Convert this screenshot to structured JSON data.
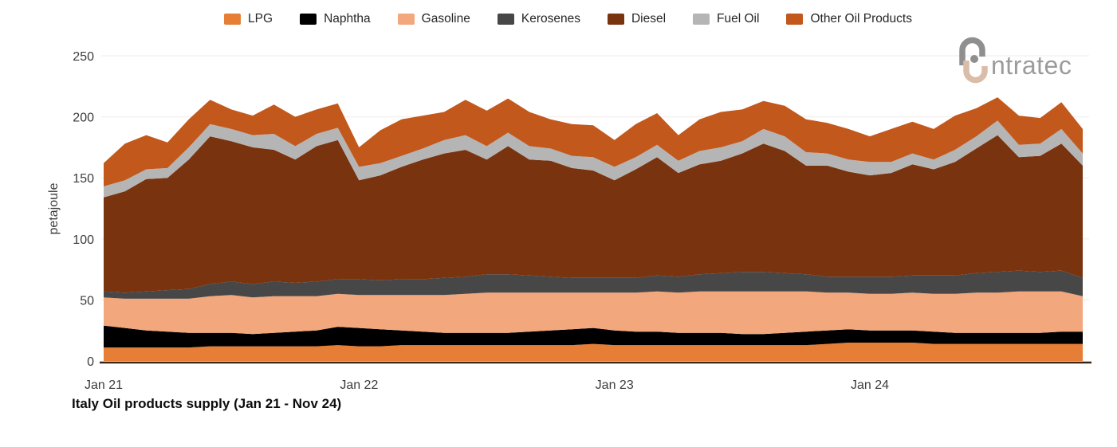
{
  "logo": {
    "text": "ntratec",
    "gray": "#8f8f8f",
    "text_gray": "#9b9b9b",
    "tan": "#d9bda8"
  },
  "chart_data": {
    "type": "area",
    "stacked": true,
    "title": "Italy Oil products supply (Jan 21 - Nov 24)",
    "ylabel": "petajoule",
    "ylim": [
      0,
      250
    ],
    "y_ticks": [
      0,
      50,
      100,
      150,
      200,
      250
    ],
    "x_ticks": [
      {
        "index": 0,
        "label": "Jan 21"
      },
      {
        "index": 12,
        "label": "Jan 22"
      },
      {
        "index": 24,
        "label": "Jan 23"
      },
      {
        "index": 36,
        "label": "Jan 24"
      }
    ],
    "grid": "horizontal-faint",
    "legend_position": "top",
    "gridline_color": "#f1efed",
    "axis_color": "#3b2414",
    "months": [
      "Jan 21",
      "Feb 21",
      "Mar 21",
      "Apr 21",
      "May 21",
      "Jun 21",
      "Jul 21",
      "Aug 21",
      "Sep 21",
      "Oct 21",
      "Nov 21",
      "Dec 21",
      "Jan 22",
      "Feb 22",
      "Mar 22",
      "Apr 22",
      "May 22",
      "Jun 22",
      "Jul 22",
      "Aug 22",
      "Sep 22",
      "Oct 22",
      "Nov 22",
      "Dec 22",
      "Jan 23",
      "Feb 23",
      "Mar 23",
      "Apr 23",
      "May 23",
      "Jun 23",
      "Jul 23",
      "Aug 23",
      "Sep 23",
      "Oct 23",
      "Nov 23",
      "Dec 23",
      "Jan 24",
      "Feb 24",
      "Mar 24",
      "Apr 24",
      "May 24",
      "Jun 24",
      "Jul 24",
      "Aug 24",
      "Sep 24",
      "Oct 24",
      "Nov 24"
    ],
    "series": [
      {
        "name": "LPG",
        "color": "#e67e35",
        "values": [
          11,
          11,
          11,
          11,
          11,
          12,
          12,
          12,
          12,
          12,
          12,
          13,
          12,
          12,
          13,
          13,
          13,
          13,
          13,
          13,
          13,
          13,
          13,
          14,
          13,
          13,
          13,
          13,
          13,
          13,
          13,
          13,
          13,
          13,
          14,
          15,
          15,
          15,
          15,
          14,
          14,
          14,
          14,
          14,
          14,
          14,
          14
        ]
      },
      {
        "name": "Naphtha",
        "color": "#000000",
        "values": [
          18,
          16,
          14,
          13,
          12,
          11,
          11,
          10,
          11,
          12,
          13,
          15,
          15,
          14,
          12,
          11,
          10,
          10,
          10,
          10,
          11,
          12,
          13,
          13,
          12,
          11,
          11,
          10,
          10,
          10,
          9,
          9,
          10,
          11,
          11,
          11,
          10,
          10,
          10,
          10,
          9,
          9,
          9,
          9,
          9,
          10,
          10
        ]
      },
      {
        "name": "Gasoline",
        "color": "#f2a77c",
        "values": [
          23,
          24,
          26,
          27,
          28,
          30,
          31,
          30,
          30,
          29,
          28,
          27,
          27,
          28,
          29,
          30,
          31,
          32,
          33,
          33,
          32,
          31,
          30,
          29,
          31,
          32,
          33,
          33,
          34,
          34,
          35,
          35,
          34,
          33,
          31,
          30,
          30,
          30,
          31,
          31,
          32,
          33,
          33,
          34,
          34,
          33,
          29
        ]
      },
      {
        "name": "Kerosenes",
        "color": "#474747",
        "values": [
          5,
          5,
          6,
          7,
          8,
          10,
          11,
          11,
          12,
          11,
          12,
          12,
          13,
          12,
          13,
          13,
          14,
          14,
          15,
          15,
          14,
          13,
          12,
          12,
          12,
          12,
          13,
          13,
          14,
          15,
          16,
          16,
          15,
          14,
          13,
          13,
          14,
          14,
          14,
          15,
          15,
          16,
          17,
          17,
          16,
          17,
          15
        ]
      },
      {
        "name": "Diesel",
        "color": "#7a330f",
        "values": [
          77,
          83,
          92,
          92,
          106,
          121,
          115,
          112,
          108,
          101,
          111,
          114,
          81,
          86,
          92,
          98,
          102,
          104,
          94,
          105,
          95,
          95,
          90,
          88,
          80,
          89,
          97,
          85,
          90,
          92,
          97,
          105,
          100,
          89,
          91,
          86,
          83,
          85,
          91,
          87,
          93,
          102,
          112,
          93,
          95,
          104,
          92
        ]
      },
      {
        "name": "Fuel Oil",
        "color": "#b5b5b5",
        "values": [
          9,
          9,
          8,
          8,
          10,
          10,
          10,
          10,
          13,
          11,
          10,
          10,
          11,
          10,
          9,
          9,
          11,
          12,
          11,
          11,
          11,
          10,
          10,
          11,
          11,
          10,
          10,
          10,
          11,
          11,
          10,
          12,
          12,
          11,
          10,
          10,
          11,
          9,
          9,
          8,
          10,
          10,
          12,
          10,
          10,
          12,
          10
        ]
      },
      {
        "name": "Other Oil Products",
        "color": "#c2581c",
        "values": [
          19,
          30,
          28,
          21,
          23,
          20,
          16,
          16,
          24,
          24,
          20,
          20,
          16,
          27,
          30,
          27,
          23,
          29,
          29,
          28,
          28,
          24,
          26,
          26,
          22,
          27,
          26,
          21,
          26,
          29,
          26,
          23,
          25,
          27,
          25,
          25,
          21,
          27,
          26,
          25,
          28,
          23,
          19,
          24,
          21,
          22,
          20
        ]
      }
    ]
  }
}
